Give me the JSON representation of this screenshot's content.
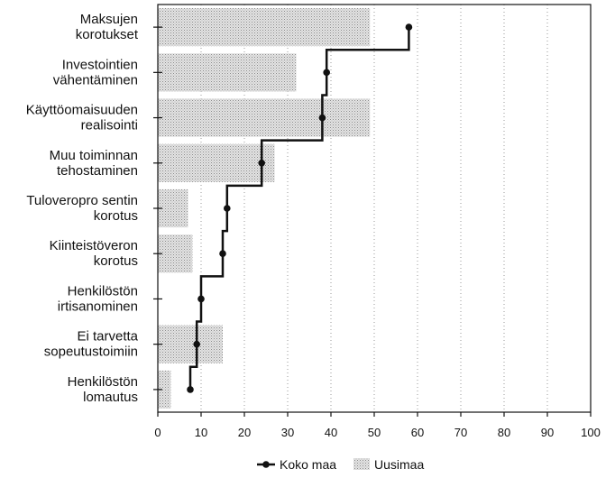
{
  "chart_data": {
    "type": "bar",
    "title": "",
    "xlabel": "",
    "ylabel": "",
    "xlim": [
      0,
      100
    ],
    "xticks": [
      "0",
      "10",
      "20",
      "30",
      "40",
      "50",
      "60",
      "70",
      "80",
      "90",
      "100"
    ],
    "grid": true,
    "legend_position": "bottom",
    "categories": [
      [
        "Maksujen",
        "korotukset"
      ],
      [
        "Investointien",
        "vähentäminen"
      ],
      [
        "Käyttöomaisuuden",
        "realisointi"
      ],
      [
        "Muu toiminnan",
        "tehostaminen"
      ],
      [
        "Tuloveropro sentin",
        "korotus"
      ],
      [
        "Kiinteistöveron",
        "korotus"
      ],
      [
        "Henkilöstön",
        "irtisanominen"
      ],
      [
        "Ei tarvetta",
        "sopeutustoimiin"
      ],
      [
        "Henkilöstön",
        "lomautus"
      ]
    ],
    "series": [
      {
        "name": "Uusimaa",
        "mark": "bar",
        "color": "#cfcfcf",
        "values": [
          49,
          32,
          49,
          27,
          7,
          8,
          0,
          15,
          3
        ]
      },
      {
        "name": "Koko maa",
        "mark": "step-line-dots",
        "color": "#111111",
        "values": [
          58,
          39,
          38,
          24,
          16,
          15,
          10,
          9,
          7.5
        ]
      }
    ]
  }
}
